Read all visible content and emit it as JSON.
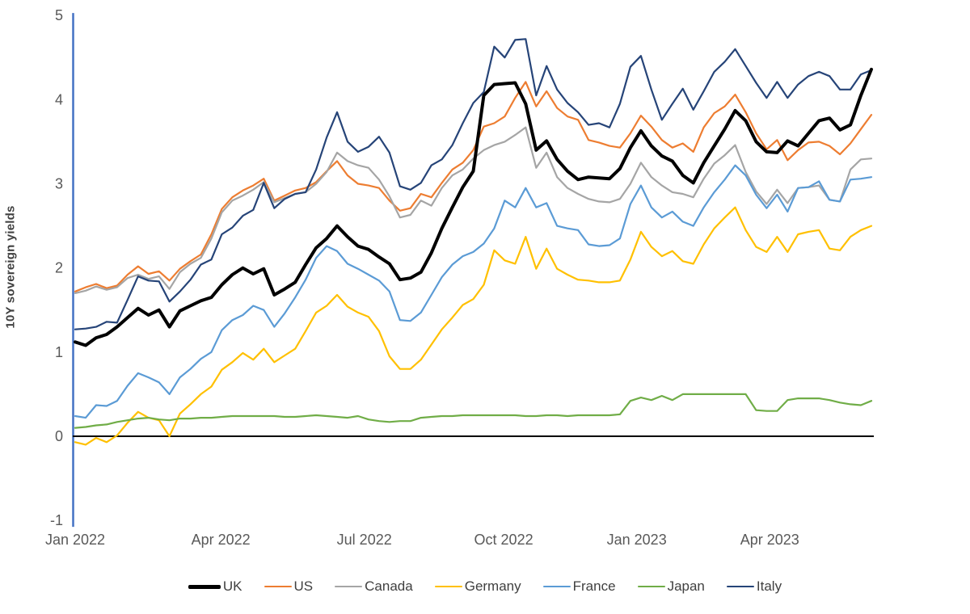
{
  "chart_data": {
    "type": "line",
    "title": "",
    "ylabel": "10Y sovereign yields",
    "xlabel": "",
    "ylim": [
      -1,
      5
    ],
    "yticks": [
      5,
      4,
      3,
      2,
      1,
      0,
      -1
    ],
    "x_tick_labels": [
      "Jan 2022",
      "Apr 2022",
      "Jul 2022",
      "Oct 2022",
      "Jan 2023",
      "Apr 2023"
    ],
    "x_tick_positions_weeks": [
      0,
      13.9,
      27.6,
      40.9,
      53.6,
      66.3
    ],
    "x_unit": "weekly, Jan 2022 to mid-Jun 2023",
    "n_points": 77,
    "grid": false,
    "legend_position": "bottom",
    "axis_colors": {
      "y_axis_line": "#4472C4",
      "x_axis_line": "#000000",
      "tick_text": "#595959"
    },
    "series": [
      {
        "name": "UK",
        "color": "#000000",
        "width": 4,
        "values": [
          1.12,
          1.08,
          1.17,
          1.21,
          1.3,
          1.41,
          1.52,
          1.44,
          1.5,
          1.3,
          1.49,
          1.55,
          1.61,
          1.65,
          1.8,
          1.92,
          2.0,
          1.93,
          1.99,
          1.68,
          1.75,
          1.83,
          2.04,
          2.24,
          2.35,
          2.5,
          2.37,
          2.26,
          2.22,
          2.13,
          2.05,
          1.86,
          1.88,
          1.95,
          2.18,
          2.47,
          2.72,
          2.96,
          3.15,
          4.05,
          4.18,
          4.19,
          4.2,
          3.95,
          3.4,
          3.51,
          3.29,
          3.15,
          3.05,
          3.08,
          3.07,
          3.06,
          3.18,
          3.43,
          3.63,
          3.45,
          3.33,
          3.27,
          3.1,
          3.01,
          3.25,
          3.45,
          3.65,
          3.87,
          3.75,
          3.5,
          3.38,
          3.37,
          3.51,
          3.45,
          3.6,
          3.75,
          3.78,
          3.64,
          3.7,
          4.05,
          4.36
        ]
      },
      {
        "name": "US",
        "color": "#ED7D31",
        "width": 2.2,
        "values": [
          1.72,
          1.77,
          1.81,
          1.76,
          1.79,
          1.92,
          2.02,
          1.93,
          1.96,
          1.85,
          1.99,
          2.08,
          2.16,
          2.4,
          2.7,
          2.84,
          2.92,
          2.98,
          3.06,
          2.8,
          2.86,
          2.92,
          2.95,
          3.02,
          3.15,
          3.27,
          3.1,
          3.0,
          2.98,
          2.95,
          2.8,
          2.68,
          2.71,
          2.88,
          2.84,
          3.01,
          3.17,
          3.25,
          3.4,
          3.68,
          3.72,
          3.8,
          4.02,
          4.21,
          3.92,
          4.1,
          3.9,
          3.8,
          3.76,
          3.52,
          3.49,
          3.45,
          3.43,
          3.6,
          3.81,
          3.68,
          3.52,
          3.43,
          3.48,
          3.38,
          3.67,
          3.84,
          3.92,
          4.06,
          3.85,
          3.6,
          3.41,
          3.52,
          3.28,
          3.4,
          3.49,
          3.5,
          3.45,
          3.35,
          3.48,
          3.65,
          3.82
        ]
      },
      {
        "name": "Canada",
        "color": "#A5A5A5",
        "width": 2.2,
        "values": [
          1.7,
          1.73,
          1.78,
          1.74,
          1.77,
          1.88,
          1.92,
          1.87,
          1.9,
          1.75,
          1.95,
          2.05,
          2.12,
          2.35,
          2.66,
          2.8,
          2.86,
          2.93,
          3.02,
          2.78,
          2.83,
          2.88,
          2.9,
          3.0,
          3.14,
          3.37,
          3.27,
          3.22,
          3.19,
          3.05,
          2.85,
          2.6,
          2.63,
          2.8,
          2.74,
          2.95,
          3.1,
          3.17,
          3.3,
          3.4,
          3.46,
          3.5,
          3.58,
          3.67,
          3.19,
          3.37,
          3.08,
          2.95,
          2.88,
          2.82,
          2.79,
          2.78,
          2.82,
          3.0,
          3.25,
          3.08,
          2.98,
          2.9,
          2.88,
          2.84,
          3.06,
          3.24,
          3.34,
          3.46,
          3.14,
          2.91,
          2.76,
          2.93,
          2.77,
          2.95,
          2.96,
          2.98,
          2.81,
          2.79,
          3.17,
          3.29,
          3.3
        ]
      },
      {
        "name": "Germany",
        "color": "#FFC000",
        "width": 2.2,
        "values": [
          -0.07,
          -0.1,
          -0.02,
          -0.07,
          0.01,
          0.16,
          0.29,
          0.22,
          0.19,
          0.0,
          0.27,
          0.38,
          0.5,
          0.59,
          0.79,
          0.88,
          0.99,
          0.91,
          1.04,
          0.88,
          0.96,
          1.04,
          1.25,
          1.47,
          1.55,
          1.68,
          1.54,
          1.47,
          1.42,
          1.25,
          0.95,
          0.8,
          0.8,
          0.91,
          1.09,
          1.27,
          1.41,
          1.56,
          1.63,
          1.8,
          2.21,
          2.09,
          2.05,
          2.37,
          1.99,
          2.23,
          1.99,
          1.92,
          1.86,
          1.85,
          1.83,
          1.83,
          1.85,
          2.1,
          2.43,
          2.25,
          2.14,
          2.2,
          2.08,
          2.05,
          2.28,
          2.47,
          2.6,
          2.72,
          2.45,
          2.25,
          2.19,
          2.37,
          2.19,
          2.4,
          2.43,
          2.45,
          2.23,
          2.21,
          2.37,
          2.45,
          2.5
        ]
      },
      {
        "name": "France",
        "color": "#5B9BD5",
        "width": 2.2,
        "values": [
          0.24,
          0.22,
          0.37,
          0.36,
          0.42,
          0.6,
          0.75,
          0.7,
          0.64,
          0.5,
          0.7,
          0.8,
          0.92,
          1.0,
          1.26,
          1.38,
          1.44,
          1.55,
          1.5,
          1.3,
          1.46,
          1.65,
          1.86,
          2.12,
          2.26,
          2.2,
          2.05,
          1.99,
          1.92,
          1.85,
          1.72,
          1.38,
          1.37,
          1.47,
          1.68,
          1.89,
          2.04,
          2.14,
          2.19,
          2.29,
          2.47,
          2.8,
          2.72,
          2.95,
          2.72,
          2.77,
          2.5,
          2.47,
          2.45,
          2.28,
          2.26,
          2.27,
          2.35,
          2.76,
          2.98,
          2.72,
          2.6,
          2.67,
          2.55,
          2.5,
          2.72,
          2.9,
          3.05,
          3.22,
          3.1,
          2.87,
          2.71,
          2.87,
          2.67,
          2.95,
          2.96,
          3.03,
          2.81,
          2.79,
          3.05,
          3.06,
          3.08
        ]
      },
      {
        "name": "Japan",
        "color": "#70AD47",
        "width": 2.2,
        "values": [
          0.1,
          0.11,
          0.13,
          0.14,
          0.17,
          0.19,
          0.21,
          0.22,
          0.2,
          0.19,
          0.21,
          0.21,
          0.22,
          0.22,
          0.23,
          0.24,
          0.24,
          0.24,
          0.24,
          0.24,
          0.23,
          0.23,
          0.24,
          0.25,
          0.24,
          0.23,
          0.22,
          0.24,
          0.2,
          0.18,
          0.17,
          0.18,
          0.18,
          0.22,
          0.23,
          0.24,
          0.24,
          0.25,
          0.25,
          0.25,
          0.25,
          0.25,
          0.25,
          0.24,
          0.24,
          0.25,
          0.25,
          0.24,
          0.25,
          0.25,
          0.25,
          0.25,
          0.26,
          0.42,
          0.46,
          0.43,
          0.48,
          0.43,
          0.5,
          0.5,
          0.5,
          0.5,
          0.5,
          0.5,
          0.5,
          0.31,
          0.3,
          0.3,
          0.43,
          0.45,
          0.45,
          0.45,
          0.43,
          0.4,
          0.38,
          0.37,
          0.42
        ]
      },
      {
        "name": "Italy",
        "color": "#264478",
        "width": 2.2,
        "values": [
          1.27,
          1.28,
          1.3,
          1.36,
          1.35,
          1.62,
          1.9,
          1.85,
          1.84,
          1.6,
          1.72,
          1.86,
          2.04,
          2.1,
          2.4,
          2.48,
          2.62,
          2.69,
          3.01,
          2.71,
          2.82,
          2.88,
          2.9,
          3.17,
          3.55,
          3.85,
          3.5,
          3.38,
          3.44,
          3.56,
          3.37,
          2.97,
          2.93,
          3.01,
          3.22,
          3.29,
          3.46,
          3.72,
          3.96,
          4.09,
          4.63,
          4.5,
          4.71,
          4.72,
          4.05,
          4.4,
          4.12,
          3.96,
          3.85,
          3.7,
          3.72,
          3.67,
          3.95,
          4.39,
          4.52,
          4.12,
          3.76,
          3.95,
          4.13,
          3.88,
          4.1,
          4.33,
          4.45,
          4.6,
          4.4,
          4.2,
          4.02,
          4.21,
          4.02,
          4.18,
          4.28,
          4.33,
          4.28,
          4.12,
          4.12,
          4.3,
          4.35
        ]
      }
    ]
  }
}
